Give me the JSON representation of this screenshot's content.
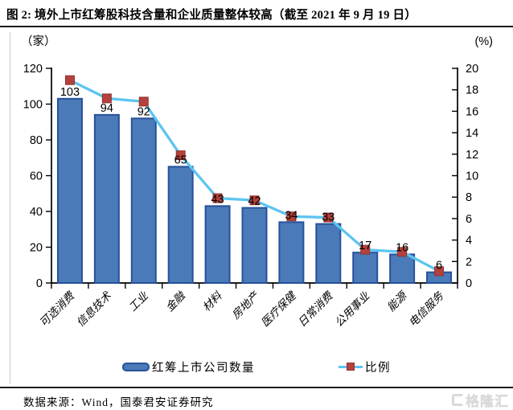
{
  "title": "图 2: 境外上市红筹股科技含量和企业质量整体较高（截至 2021 年 9 月 19 日）",
  "chart_data": {
    "type": "bar",
    "subtype": "bar-line-combo",
    "categories": [
      "可选消费",
      "信息技术",
      "工业",
      "金融",
      "材料",
      "房地产",
      "医疗保健",
      "日常消费",
      "公用事业",
      "能源",
      "电信服务"
    ],
    "series": [
      {
        "name": "红筹上市公司数量",
        "type": "bar",
        "axis": "left",
        "values": [
          103,
          94,
          92,
          65,
          43,
          42,
          34,
          33,
          17,
          16,
          6
        ],
        "color": "#4a7ab8",
        "border_color": "#27519b"
      },
      {
        "name": "比例",
        "type": "line",
        "axis": "right",
        "values": [
          18.9,
          17.2,
          16.9,
          11.9,
          7.9,
          7.7,
          6.2,
          6.1,
          3.1,
          2.9,
          1.1
        ],
        "color": "#5cc5f0",
        "marker": "square",
        "marker_color": "#b5413c",
        "marker_border_color": "#8f3330"
      }
    ],
    "data_labels": [
      103,
      94,
      92,
      65,
      43,
      42,
      34,
      33,
      17,
      16,
      6
    ],
    "left_axis": {
      "unit": "（家）",
      "min": 0,
      "max": 120,
      "ticks": [
        0,
        20,
        40,
        60,
        80,
        100,
        120
      ]
    },
    "right_axis": {
      "unit": "(%)",
      "min": 0,
      "max": 20,
      "ticks": [
        0,
        2,
        4,
        6,
        8,
        10,
        12,
        14,
        16,
        18,
        20
      ]
    },
    "grid": false,
    "legend_position": "bottom",
    "legend": [
      "红筹上市公司数量",
      "比例"
    ]
  },
  "footer": {
    "source": "数据来源：Wind，国泰君安证券研究",
    "logo_text": "格隆汇"
  }
}
